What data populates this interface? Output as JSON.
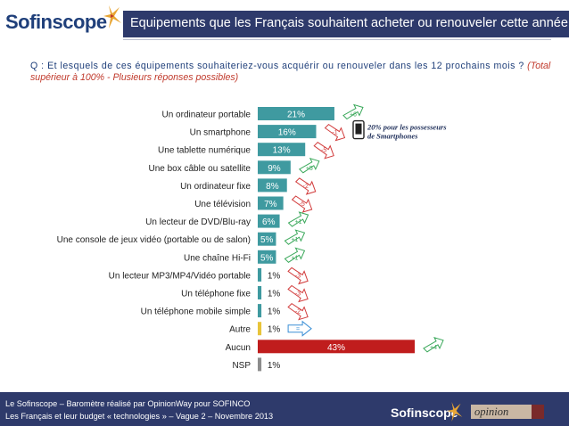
{
  "header": {
    "logo_text": "Sofinscope",
    "title": "Equipements que les Français souhaitent acheter ou renouveler cette année"
  },
  "question": {
    "text": "Q : Et lesquels de ces équipements souhaiteriez-vous acquérir ou renouveler dans les 12 prochains mois ?",
    "note": "(Total supérieur à 100% - Plusieurs réponses possibles)"
  },
  "chart_data": {
    "type": "bar",
    "orientation": "horizontal",
    "categories": [
      "Un ordinateur portable",
      "Un smartphone",
      "Une tablette numérique",
      "Une box câble ou satellite",
      "Un ordinateur fixe",
      "Une télévision",
      "Un lecteur de DVD/Blu-ray",
      "Une console de jeux vidéo (portable ou de salon)",
      "Une chaîne Hi-Fi",
      "Un lecteur MP3/MP4/Vidéo portable",
      "Un téléphone fixe",
      "Un téléphone mobile simple",
      "Autre",
      "Aucun",
      "NSP"
    ],
    "values": [
      21,
      16,
      13,
      9,
      8,
      7,
      6,
      5,
      5,
      1,
      1,
      1,
      1,
      43,
      1
    ],
    "value_labels": [
      "21%",
      "16%",
      "13%",
      "9%",
      "8%",
      "7%",
      "6%",
      "5%",
      "5%",
      "1%",
      "1%",
      "1%",
      "1%",
      "43%",
      "1%"
    ],
    "changes": [
      "+6",
      "-1",
      "-5",
      "+5",
      "-2",
      "-5",
      "+1",
      "+1",
      "+1",
      "-3",
      "-3",
      "-2",
      "=",
      "+4",
      ""
    ],
    "change_direction": [
      "up",
      "down",
      "down",
      "up",
      "down",
      "down",
      "up",
      "up",
      "up",
      "down",
      "down",
      "down",
      "equal",
      "up",
      "none"
    ],
    "bar_colors": [
      "#3f9aa0",
      "#3f9aa0",
      "#3f9aa0",
      "#3f9aa0",
      "#3f9aa0",
      "#3f9aa0",
      "#3f9aa0",
      "#3f9aa0",
      "#3f9aa0",
      "#3f9aa0",
      "#3f9aa0",
      "#3f9aa0",
      "#e8c43a",
      "#c01d1d",
      "#8c8c8c"
    ],
    "annotation": "20% pour les possesseurs de Smartphones",
    "xlim": [
      0,
      43
    ]
  },
  "colors": {
    "navy": "#2e3a6b",
    "teal": "#3f9aa0",
    "up": "#3aa85a",
    "down": "#d23c3c",
    "equal": "#3a8fd6"
  },
  "footer": {
    "line1": "Le Sofinscope – Baromètre réalisé par OpinionWay pour SOFINCO",
    "line2": "Les Français et leur budget « technologies » – Vague 2 – Novembre 2013",
    "logo_text": "Sofinscope",
    "partner": "opinion"
  }
}
